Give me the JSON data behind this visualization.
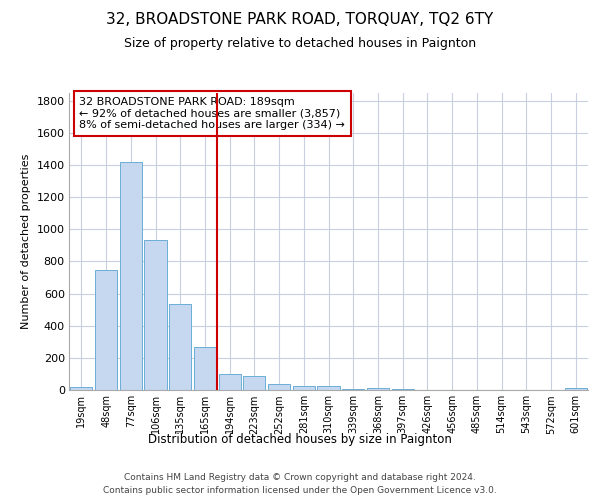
{
  "title1": "32, BROADSTONE PARK ROAD, TORQUAY, TQ2 6TY",
  "title2": "Size of property relative to detached houses in Paignton",
  "xlabel": "Distribution of detached houses by size in Paignton",
  "ylabel": "Number of detached properties",
  "bar_color": "#c5d8f0",
  "bar_edge_color": "#6baed6",
  "background_color": "#ffffff",
  "grid_color": "#c8d0e0",
  "annotation_text": "32 BROADSTONE PARK ROAD: 189sqm\n← 92% of detached houses are smaller (3,857)\n8% of semi-detached houses are larger (334) →",
  "vline_color": "#cc0000",
  "annotation_box_color": "#ffffff",
  "annotation_box_edge": "#cc0000",
  "bin_labels": [
    "19sqm",
    "48sqm",
    "77sqm",
    "106sqm",
    "135sqm",
    "165sqm",
    "194sqm",
    "223sqm",
    "252sqm",
    "281sqm",
    "310sqm",
    "339sqm",
    "368sqm",
    "397sqm",
    "426sqm",
    "456sqm",
    "485sqm",
    "514sqm",
    "543sqm",
    "572sqm",
    "601sqm"
  ],
  "bar_heights": [
    20,
    745,
    1420,
    935,
    535,
    265,
    100,
    90,
    35,
    25,
    25,
    5,
    15,
    5,
    3,
    3,
    3,
    3,
    2,
    2,
    10
  ],
  "ylim": [
    0,
    1850
  ],
  "yticks": [
    0,
    200,
    400,
    600,
    800,
    1000,
    1200,
    1400,
    1600,
    1800
  ],
  "footer1": "Contains HM Land Registry data © Crown copyright and database right 2024.",
  "footer2": "Contains public sector information licensed under the Open Government Licence v3.0."
}
